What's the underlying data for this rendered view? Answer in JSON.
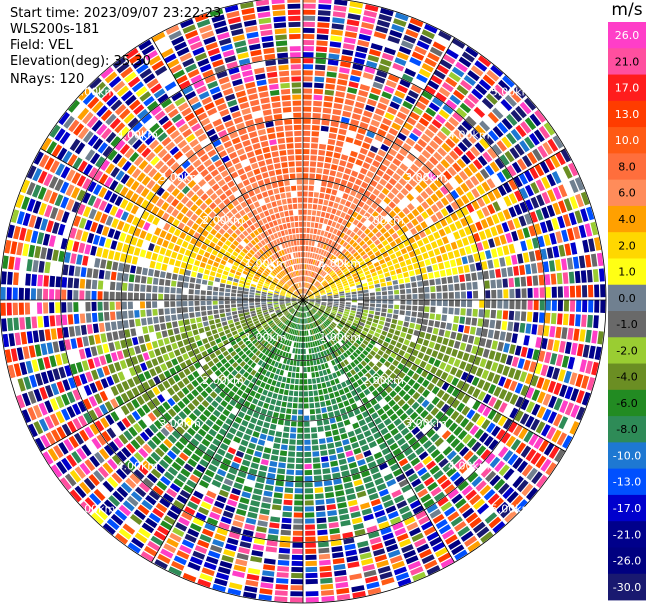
{
  "header": {
    "start_time": "Start time: 2023/09/07 23:22:23",
    "instrument": "WLS200s-181",
    "field": "Field: VEL",
    "elevation": "Elevation(deg): 35.30",
    "nrays": "NRays: 120"
  },
  "chart_data": {
    "type": "heatmap",
    "projection": "polar-ppi",
    "field": "VEL",
    "units": "m/s",
    "nrays": 120,
    "ring_labels": [
      "1.00km",
      "2.00km",
      "3.00km",
      "4.00km",
      "5.00km"
    ],
    "rings_km": [
      1,
      2,
      3,
      4,
      5
    ],
    "max_range_km": 5.0,
    "gates": 50,
    "spokes_deg": [
      0,
      30,
      60,
      90,
      120,
      150,
      180,
      210,
      240,
      270,
      300,
      330
    ],
    "colorbar": {
      "title": "m/s",
      "ticks": [
        "26.0",
        "21.0",
        "17.0",
        "13.0",
        "10.0",
        "8.0",
        "6.0",
        "4.0",
        "2.0",
        "1.0",
        "0.0",
        "-1.0",
        "-2.0",
        "-4.0",
        "-6.0",
        "-8.0",
        "-10.0",
        "-13.0",
        "-17.0",
        "-21.0",
        "-26.0",
        "-30.0"
      ],
      "bins": [
        {
          "min": 26,
          "max": 30,
          "color": "#ff3ec8"
        },
        {
          "min": 21,
          "max": 26,
          "color": "#ff4f9f"
        },
        {
          "min": 17,
          "max": 21,
          "color": "#ff1d1d"
        },
        {
          "min": 13,
          "max": 17,
          "color": "#ff3c00"
        },
        {
          "min": 10,
          "max": 13,
          "color": "#ff5a14"
        },
        {
          "min": 8,
          "max": 10,
          "color": "#ff6e3c"
        },
        {
          "min": 6,
          "max": 8,
          "color": "#ff8c5a"
        },
        {
          "min": 4,
          "max": 6,
          "color": "#ffa000"
        },
        {
          "min": 2,
          "max": 4,
          "color": "#ffd700"
        },
        {
          "min": 1,
          "max": 2,
          "color": "#ffff14"
        },
        {
          "min": 0,
          "max": 1,
          "color": "#708090"
        },
        {
          "min": -1,
          "max": 0,
          "color": "#696969"
        },
        {
          "min": -2,
          "max": -1,
          "color": "#9acd32"
        },
        {
          "min": -4,
          "max": -2,
          "color": "#6b8e23"
        },
        {
          "min": -6,
          "max": -4,
          "color": "#228b22"
        },
        {
          "min": -8,
          "max": -6,
          "color": "#2e8b57"
        },
        {
          "min": -10,
          "max": -8,
          "color": "#1e78d2"
        },
        {
          "min": -13,
          "max": -10,
          "color": "#0050ff"
        },
        {
          "min": -17,
          "max": -13,
          "color": "#0000cd"
        },
        {
          "min": -21,
          "max": -17,
          "color": "#00008b"
        },
        {
          "min": -26,
          "max": -21,
          "color": "#000080"
        },
        {
          "min": -30,
          "max": -26,
          "color": "#191970"
        }
      ]
    },
    "velocity_model": {
      "description_note": "",
      "peak_positive_ms": 12,
      "peak_negative_ms": -9,
      "noise_onset_km": 3.6
    }
  }
}
